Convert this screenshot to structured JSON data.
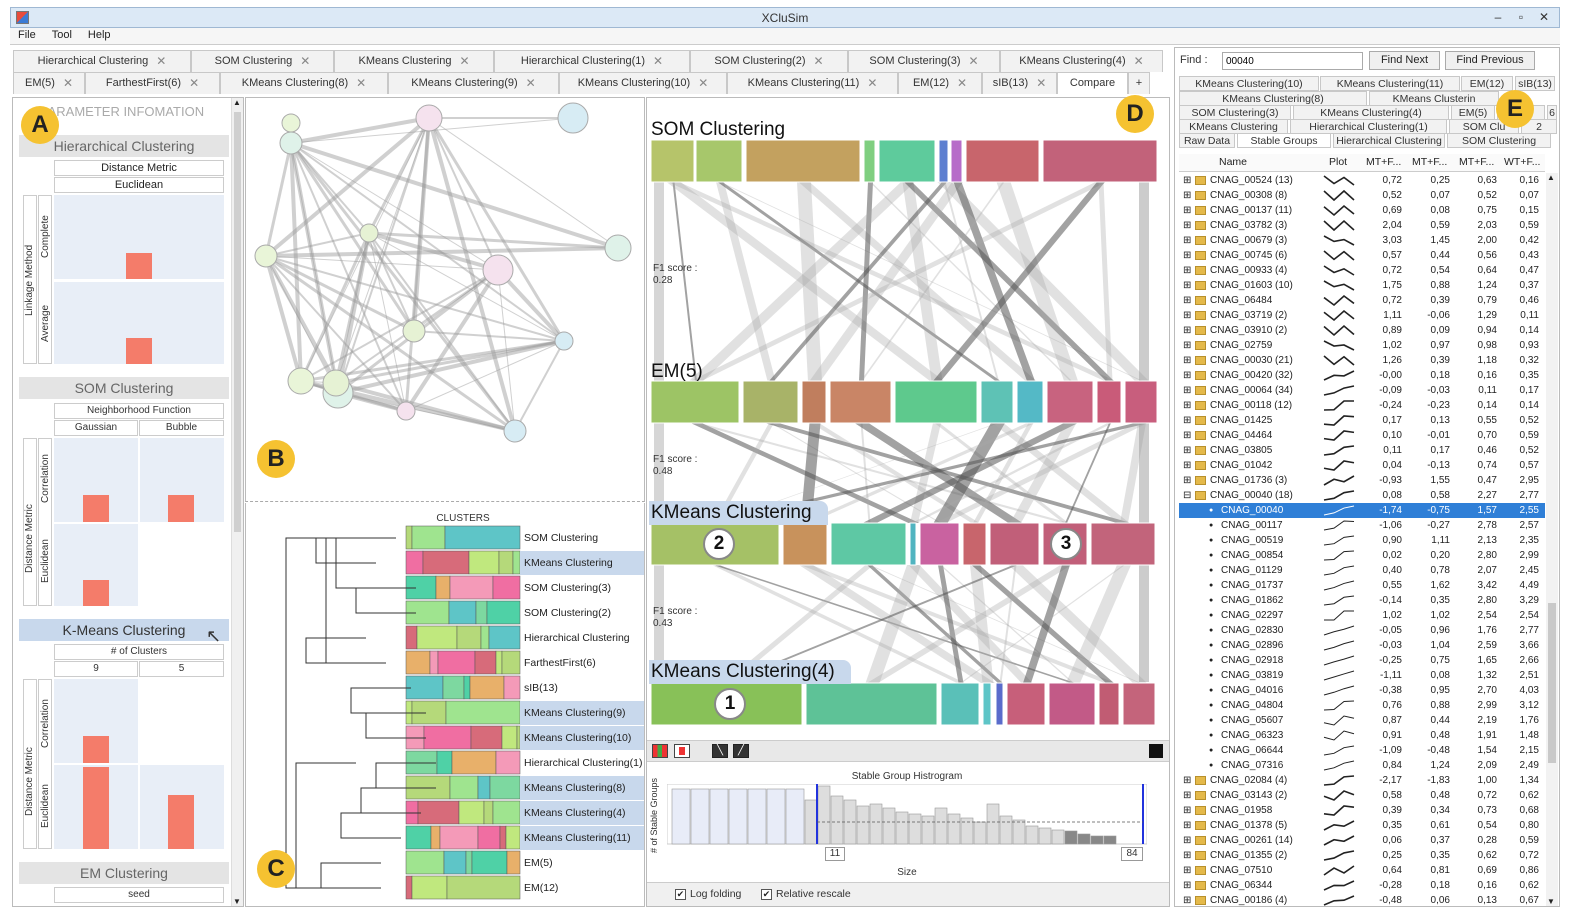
{
  "window": {
    "title": "XCluSim",
    "min": "–",
    "restore": "▫",
    "close": "✕"
  },
  "menu": [
    "File",
    "Tool",
    "Help"
  ],
  "tabs_row1": [
    "Hierarchical Clustering",
    "SOM Clustering",
    "KMeans Clustering",
    "Hierarchical Clustering(1)",
    "SOM Clustering(2)",
    "SOM Clustering(3)",
    "KMeans Clustering(4)"
  ],
  "tabs_row2": [
    "EM(5)",
    "FarthestFirst(6)",
    "KMeans Clustering(8)",
    "KMeans Clustering(9)",
    "KMeans Clustering(10)",
    "KMeans Clustering(11)",
    "EM(12)",
    "sIB(13)",
    "Compare"
  ],
  "tab_add": "+",
  "labels": {
    "a": "A",
    "b": "B",
    "c": "C",
    "d": "D",
    "e": "E"
  },
  "param": {
    "header": "PARAMETER INFOMATION",
    "hier": {
      "title": "Hierarchical Clustering",
      "metric": "Distance Metric",
      "metric_val": "Euclidean",
      "linkage": "Linkage Method",
      "rows": [
        "Complete",
        "Average"
      ]
    },
    "som": {
      "title": "SOM Clustering",
      "nf": "Neighborhood Function",
      "cols": [
        "Gaussian",
        "Bubble"
      ],
      "dm": "Distance Metric",
      "rows": [
        "Correlation",
        "Euclidean"
      ]
    },
    "km": {
      "title": "K-Means Clustering",
      "nc": "# of Clusters",
      "cols": [
        "9",
        "5"
      ],
      "dm": "Distance Metric",
      "rows": [
        "Correlation",
        "Euclidean"
      ]
    },
    "em": {
      "title": "EM Clustering",
      "seed": "seed"
    }
  },
  "dendro": {
    "header": "CLUSTERS",
    "rows": [
      "SOM Clustering",
      "KMeans Clustering",
      "SOM Clustering(3)",
      "SOM Clustering(2)",
      "Hierarchical Clustering",
      "FarthestFirst(6)",
      "sIB(13)",
      "KMeans Clustering(9)",
      "KMeans Clustering(10)",
      "Hierarchical Clustering(1)",
      "KMeans Clustering(8)",
      "KMeans Clustering(4)",
      "KMeans Clustering(11)",
      "EM(5)",
      "EM(12)"
    ]
  },
  "compare": {
    "rows": [
      "SOM Clustering",
      "EM(5)",
      "KMeans Clustering",
      "KMeans Clustering(4)"
    ],
    "f1": [
      {
        "label": "F1 score :",
        "val": "0.28"
      },
      {
        "label": "F1 score :",
        "val": "0.48"
      },
      {
        "label": "F1 score :",
        "val": "0.43"
      }
    ],
    "markers": [
      "2",
      "3",
      "1"
    ]
  },
  "histogram": {
    "title": "Stable Group Histrogram",
    "ylabel": "# of Stable Groups",
    "xlabel": "Size",
    "left_val": "11",
    "right_val": "84",
    "opt1": "Log folding",
    "opt2": "Relative rescale"
  },
  "find": {
    "label": "Find :",
    "value": "00040",
    "next": "Find Next",
    "prev": "Find Previous"
  },
  "rtabs1": [
    "KMeans Clustering(10)",
    "KMeans Clustering(11)",
    "EM(12)",
    "sIB(13)"
  ],
  "rtabs2": [
    "KMeans Clustering(8)",
    "KMeans Clusterin"
  ],
  "rtabs3": [
    "SOM Clustering(3)",
    "KMeans Clustering(4)",
    "EM(5)",
    "Far",
    "6"
  ],
  "rtabs4": [
    "KMeans Clustering",
    "Hierarchical Clustering(1)",
    "SOM Clu",
    "2"
  ],
  "rtabs5": [
    "Raw Data",
    "Stable Groups",
    "Hierarchical Clustering",
    "SOM Clustering"
  ],
  "table": {
    "cols": [
      "Name",
      "Plot",
      "MT+F...",
      "MT+F...",
      "MT+F...",
      "WT+F..."
    ],
    "rows": [
      [
        "⊞",
        "CNAG_00524 (13)",
        "0,72",
        "0,25",
        "0,63",
        "0,16"
      ],
      [
        "⊞",
        "CNAG_00308 (8)",
        "0,52",
        "0,07",
        "0,52",
        "0,07"
      ],
      [
        "⊞",
        "CNAG_00137 (11)",
        "0,69",
        "0,08",
        "0,75",
        "0,15"
      ],
      [
        "⊞",
        "CNAG_03782 (3)",
        "2,04",
        "0,59",
        "2,03",
        "0,59"
      ],
      [
        "⊞",
        "CNAG_00679 (3)",
        "3,03",
        "1,45",
        "2,00",
        "0,42"
      ],
      [
        "⊞",
        "CNAG_00745 (6)",
        "0,57",
        "0,44",
        "0,56",
        "0,43"
      ],
      [
        "⊞",
        "CNAG_00933 (4)",
        "0,72",
        "0,54",
        "0,64",
        "0,47"
      ],
      [
        "⊞",
        "CNAG_01603 (10)",
        "1,75",
        "0,88",
        "1,24",
        "0,37"
      ],
      [
        "⊞",
        "CNAG_06484",
        "0,72",
        "0,39",
        "0,79",
        "0,46"
      ],
      [
        "⊞",
        "CNAG_03719 (2)",
        "1,11",
        "-0,06",
        "1,29",
        "0,11"
      ],
      [
        "⊞",
        "CNAG_03910 (2)",
        "0,89",
        "0,09",
        "0,94",
        "0,14"
      ],
      [
        "⊞",
        "CNAG_02759",
        "1,02",
        "0,97",
        "0,98",
        "0,93"
      ],
      [
        "⊞",
        "CNAG_00030 (21)",
        "1,26",
        "0,39",
        "1,18",
        "0,32"
      ],
      [
        "⊞",
        "CNAG_00420 (32)",
        "-0,00",
        "0,18",
        "0,16",
        "0,35"
      ],
      [
        "⊞",
        "CNAG_00064 (34)",
        "-0,09",
        "-0,03",
        "0,11",
        "0,17"
      ],
      [
        "⊞",
        "CNAG_00118 (12)",
        "-0,24",
        "-0,23",
        "0,14",
        "0,14"
      ],
      [
        "⊞",
        "CNAG_01425",
        "0,17",
        "0,13",
        "0,55",
        "0,52"
      ],
      [
        "⊞",
        "CNAG_04464",
        "0,10",
        "-0,01",
        "0,70",
        "0,59"
      ],
      [
        "⊞",
        "CNAG_03805",
        "0,11",
        "0,17",
        "0,46",
        "0,52"
      ],
      [
        "⊞",
        "CNAG_01042",
        "0,04",
        "-0,13",
        "0,74",
        "0,57"
      ],
      [
        "⊞",
        "CNAG_01736 (3)",
        "-0,93",
        "1,55",
        "0,47",
        "2,95"
      ],
      [
        "⊟",
        "CNAG_00040 (18)",
        "0,08",
        "0,58",
        "2,27",
        "2,77"
      ],
      [
        "●",
        "CNAG_00040",
        "-1,74",
        "-0,75",
        "1,57",
        "2,55"
      ],
      [
        "●",
        "CNAG_00117",
        "-1,06",
        "-0,27",
        "2,78",
        "2,57"
      ],
      [
        "●",
        "CNAG_00519",
        "0,90",
        "1,11",
        "2,13",
        "2,35"
      ],
      [
        "●",
        "CNAG_00854",
        "0,02",
        "0,20",
        "2,80",
        "2,99"
      ],
      [
        "●",
        "CNAG_01129",
        "0,40",
        "0,78",
        "2,07",
        "2,45"
      ],
      [
        "●",
        "CNAG_01737",
        "0,55",
        "1,62",
        "3,42",
        "4,49"
      ],
      [
        "●",
        "CNAG_01862",
        "-0,14",
        "0,35",
        "2,80",
        "3,29"
      ],
      [
        "●",
        "CNAG_02297",
        "1,02",
        "1,02",
        "2,54",
        "2,54"
      ],
      [
        "●",
        "CNAG_02830",
        "-0,05",
        "0,96",
        "1,76",
        "2,77"
      ],
      [
        "●",
        "CNAG_02896",
        "-0,03",
        "1,04",
        "2,59",
        "3,66"
      ],
      [
        "●",
        "CNAG_02918",
        "-0,25",
        "0,75",
        "1,65",
        "2,66"
      ],
      [
        "●",
        "CNAG_03819",
        "-1,11",
        "0,08",
        "1,32",
        "2,51"
      ],
      [
        "●",
        "CNAG_04016",
        "-0,38",
        "0,95",
        "2,70",
        "4,03"
      ],
      [
        "●",
        "CNAG_04804",
        "0,76",
        "0,88",
        "2,99",
        "3,12"
      ],
      [
        "●",
        "CNAG_05607",
        "0,87",
        "0,44",
        "2,19",
        "1,76"
      ],
      [
        "●",
        "CNAG_06323",
        "0,91",
        "0,48",
        "1,91",
        "1,48"
      ],
      [
        "●",
        "CNAG_06644",
        "-1,09",
        "-0,48",
        "1,54",
        "2,15"
      ],
      [
        "●",
        "CNAG_07316",
        "0,84",
        "1,24",
        "2,09",
        "2,49"
      ],
      [
        "⊞",
        "CNAG_02084 (4)",
        "-2,17",
        "-1,83",
        "1,00",
        "1,34"
      ],
      [
        "⊞",
        "CNAG_03143 (2)",
        "0,58",
        "0,48",
        "0,72",
        "0,62"
      ],
      [
        "⊞",
        "CNAG_01958",
        "0,39",
        "0,34",
        "0,73",
        "0,68"
      ],
      [
        "⊞",
        "CNAG_01378 (5)",
        "0,35",
        "0,61",
        "0,54",
        "0,80"
      ],
      [
        "⊞",
        "CNAG_00261 (14)",
        "0,06",
        "0,37",
        "0,28",
        "0,59"
      ],
      [
        "⊞",
        "CNAG_01355 (2)",
        "0,25",
        "0,35",
        "0,62",
        "0,72"
      ],
      [
        "⊞",
        "CNAG_07510",
        "0,64",
        "0,81",
        "0,69",
        "0,86"
      ],
      [
        "⊞",
        "CNAG_06344",
        "-0,28",
        "0,18",
        "0,16",
        "0,62"
      ],
      [
        "⊞",
        "CNAG_00186 (4)",
        "-0,48",
        "0,06",
        "0,13",
        "0,67"
      ]
    ],
    "selected_index": 22
  }
}
